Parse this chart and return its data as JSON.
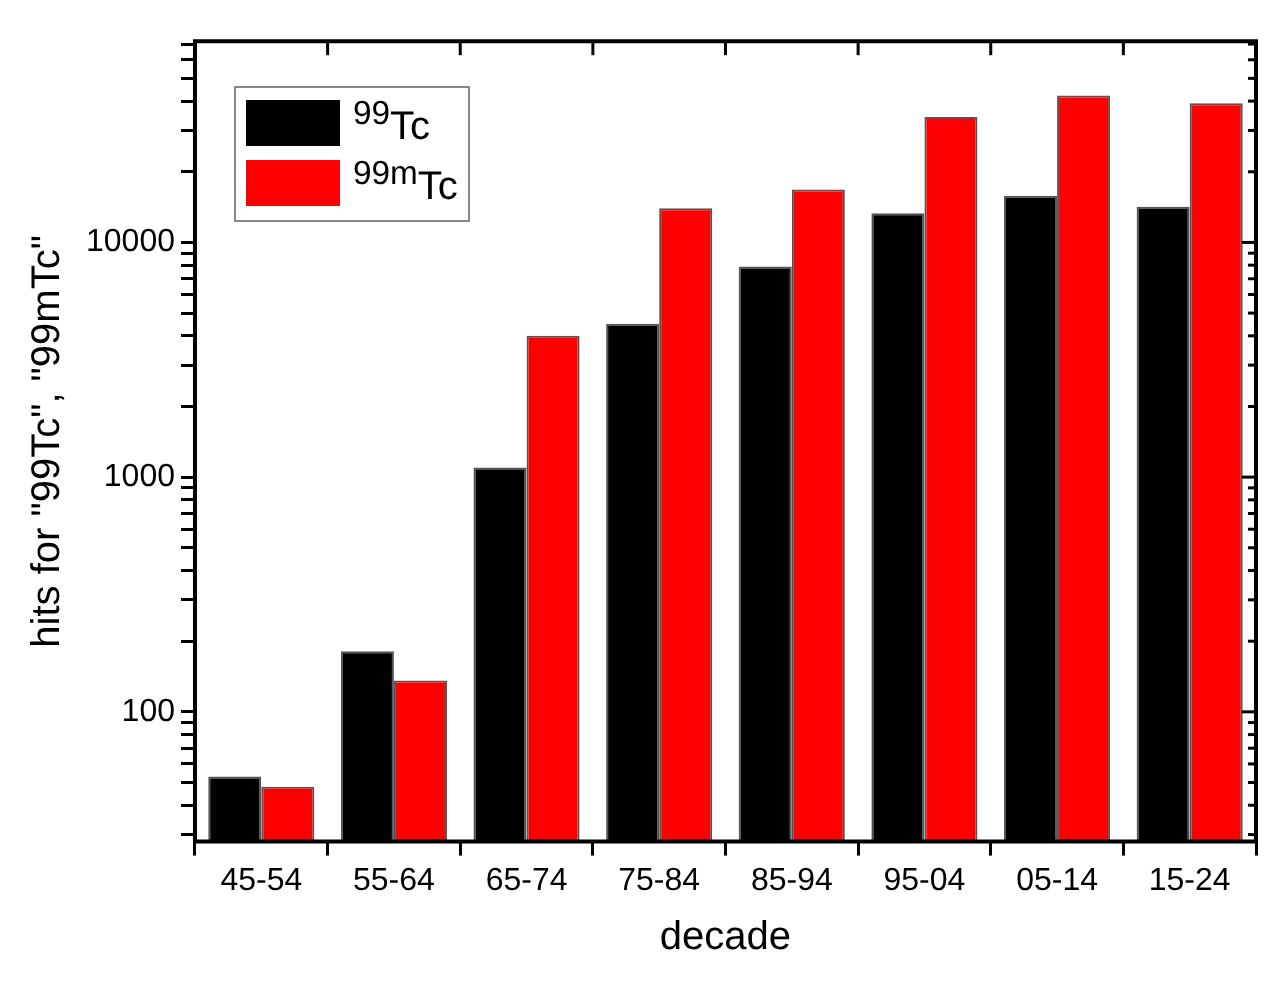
{
  "chart_data": {
    "type": "bar",
    "xlabel": "decade",
    "ylabel": "hits for \"99Tc\", \"99mTc\"",
    "categories": [
      "45-54",
      "55-64",
      "65-74",
      "75-84",
      "85-94",
      "95-04",
      "05-14",
      "15-24"
    ],
    "series": [
      {
        "name": "$^{99}$Tc",
        "color": "#000000",
        "values": [
          53,
          181,
          1100,
          4500,
          7900,
          13300,
          15800,
          14200
        ]
      },
      {
        "name": "$^{99m}$Tc",
        "color": "#ff0000",
        "values": [
          48,
          136,
          4000,
          14000,
          16800,
          34200,
          42300,
          39200
        ]
      }
    ],
    "log": true,
    "ylim": [
      28,
      72000
    ],
    "yticks": [
      {
        "value": 30,
        "label": null
      },
      {
        "value": 40,
        "label": null
      },
      {
        "value": 50,
        "label": null
      },
      {
        "value": 60,
        "label": null
      },
      {
        "value": 70,
        "label": null
      },
      {
        "value": 80,
        "label": null
      },
      {
        "value": 90,
        "label": null
      },
      100,
      {
        "value": 200,
        "label": null
      },
      {
        "value": 300,
        "label": null
      },
      {
        "value": 400,
        "label": null
      },
      {
        "value": 500,
        "label": null
      },
      {
        "value": 600,
        "label": null
      },
      {
        "value": 700,
        "label": null
      },
      {
        "value": 800,
        "label": null
      },
      {
        "value": 900,
        "label": null
      },
      1000,
      {
        "value": 2000,
        "label": null
      },
      {
        "value": 3000,
        "label": null
      },
      {
        "value": 4000,
        "label": null
      },
      {
        "value": 5000,
        "label": null
      },
      {
        "value": 6000,
        "label": null
      },
      {
        "value": 7000,
        "label": null
      },
      {
        "value": 8000,
        "label": null
      },
      {
        "value": 9000,
        "label": null
      },
      10000,
      {
        "value": 20000,
        "label": null
      },
      {
        "value": 30000,
        "label": null
      },
      {
        "value": 40000,
        "label": null
      },
      {
        "value": 50000,
        "label": null
      },
      {
        "value": 60000,
        "label": null
      },
      {
        "value": 70000,
        "label": null
      }
    ],
    "grid": false,
    "legend": "top left"
  }
}
